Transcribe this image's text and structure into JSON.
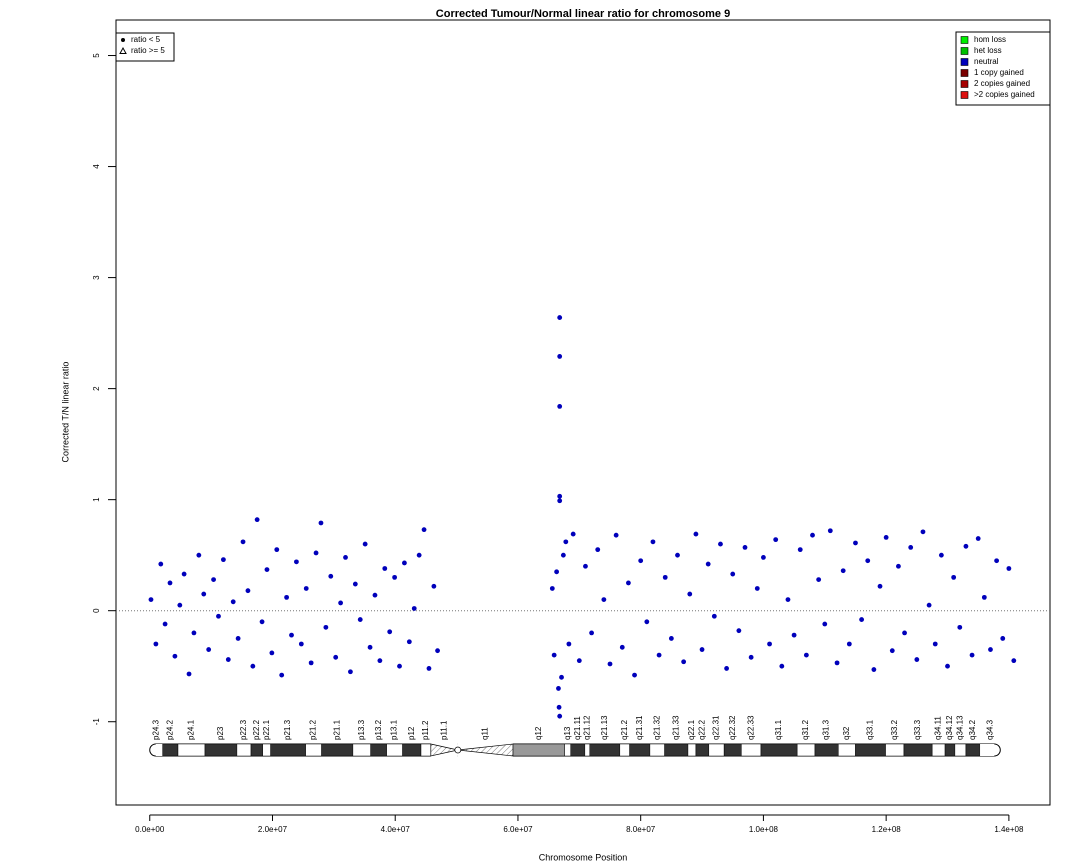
{
  "chart_data": {
    "type": "scatter",
    "title": "Corrected Tumour/Normal linear ratio for chromosome  9",
    "x_label": "Chromosome Position",
    "y_label": "Corrected T/N linear ratio",
    "xlim": [
      -5500000.0,
      146700000.0
    ],
    "ylim": [
      -1.75,
      5.32
    ],
    "xticks": [
      {
        "value": 0,
        "label": "0.0e+00"
      },
      {
        "value": 20000000.0,
        "label": "2.0e+07"
      },
      {
        "value": 40000000.0,
        "label": "4.0e+07"
      },
      {
        "value": 60000000.0,
        "label": "6.0e+07"
      },
      {
        "value": 80000000.0,
        "label": "8.0e+07"
      },
      {
        "value": 100000000.0,
        "label": "1.0e+08"
      },
      {
        "value": 120000000.0,
        "label": "1.2e+08"
      },
      {
        "value": 140000000.0,
        "label": "1.4e+08"
      }
    ],
    "yticks": [
      -1,
      0,
      1,
      2,
      3,
      4,
      5
    ],
    "hline": 0,
    "shape_legend": {
      "corner": "top-left",
      "entries": [
        "ratio < 5",
        "ratio >= 5"
      ]
    },
    "status_legend": {
      "corner": "top-right",
      "entries": [
        {
          "name": "hom loss",
          "color": "#00ee00"
        },
        {
          "name": "het loss",
          "color": "#00c000"
        },
        {
          "name": "neutral",
          "color": "#0000bb"
        },
        {
          "name": "1 copy gained",
          "color": "#7a0000"
        },
        {
          "name": "2 copies gained",
          "color": "#a50000"
        },
        {
          "name": ">2 copies gained",
          "color": "#dd1111"
        }
      ]
    },
    "series": [
      {
        "name": "neutral",
        "color": "#0000bb",
        "x": [
          200000.0,
          1000000.0,
          1800000.0,
          2500000.0,
          3300000.0,
          4100000.0,
          4900000.0,
          5600000.0,
          6400000.0,
          7200000.0,
          8000000.0,
          8800000.0,
          9600000.0,
          10400000.0,
          11200000.0,
          12000000.0,
          12800000.0,
          13600000.0,
          14400000.0,
          15200000.0,
          16000000.0,
          16800000.0,
          17500000.0,
          18300000.0,
          19100000.0,
          19900000.0,
          20700000.0,
          21500000.0,
          22300000.0,
          23100000.0,
          23900000.0,
          24700000.0,
          25500000.0,
          26300000.0,
          27100000.0,
          27900000.0,
          28700000.0,
          29500000.0,
          30300000.0,
          31100000.0,
          31900000.0,
          32700000.0,
          33500000.0,
          34300000.0,
          35100000.0,
          35900000.0,
          36700000.0,
          37500000.0,
          38300000.0,
          39100000.0,
          39900000.0,
          40700000.0,
          41500000.0,
          42300000.0,
          43100000.0,
          43900000.0,
          44700000.0,
          45500000.0,
          46300000.0,
          46900000.0,
          65600000.0,
          65900000.0,
          66300000.0,
          66600000.0,
          66800000.0,
          66800000.0,
          66800000.0,
          66800000.0,
          66800000.0,
          66800000.0,
          66700000.0,
          67100000.0,
          67400000.0,
          67800000.0,
          68300000.0,
          69000000.0,
          70000000.0,
          71000000.0,
          72000000.0,
          73000000.0,
          74000000.0,
          75000000.0,
          76000000.0,
          77000000.0,
          78000000.0,
          79000000.0,
          80000000.0,
          81000000.0,
          82000000.0,
          83000000.0,
          84000000.0,
          85000000.0,
          86000000.0,
          87000000.0,
          88000000.0,
          89000000.0,
          90000000.0,
          91000000.0,
          92000000.0,
          93000000.0,
          94000000.0,
          95000000.0,
          96000000.0,
          97000000.0,
          98000000.0,
          99000000.0,
          100000000.0,
          101000000.0,
          102000000.0,
          103000000.0,
          104000000.0,
          105000000.0,
          106000000.0,
          107000000.0,
          108000000.0,
          109000000.0,
          110000000.0,
          110900000.0,
          112000000.0,
          113000000.0,
          114000000.0,
          115000000.0,
          116000000.0,
          117000000.0,
          118000000.0,
          119000000.0,
          120000000.0,
          121000000.0,
          122000000.0,
          123000000.0,
          124000000.0,
          125000000.0,
          126000000.0,
          127000000.0,
          128000000.0,
          129000000.0,
          130000000.0,
          131000000.0,
          132000000.0,
          133000000.0,
          134000000.0,
          135000000.0,
          136000000.0,
          137000000.0,
          138000000.0,
          139000000.0,
          140000000.0,
          140800000.0
        ],
        "values": [
          0.1,
          -0.3,
          0.42,
          -0.12,
          0.25,
          -0.41,
          0.05,
          0.33,
          -0.57,
          -0.2,
          0.5,
          0.15,
          -0.35,
          0.28,
          -0.05,
          0.46,
          -0.44,
          0.08,
          -0.25,
          0.62,
          0.18,
          -0.5,
          0.82,
          -0.1,
          0.37,
          -0.38,
          0.55,
          -0.58,
          0.12,
          -0.22,
          0.44,
          -0.3,
          0.2,
          -0.47,
          0.52,
          0.79,
          -0.15,
          0.31,
          -0.42,
          0.07,
          0.48,
          -0.55,
          0.24,
          -0.08,
          0.6,
          -0.33,
          0.14,
          -0.45,
          0.38,
          -0.19,
          0.3,
          -0.5,
          0.43,
          -0.28,
          0.02,
          0.5,
          0.73,
          -0.52,
          0.22,
          -0.36,
          0.2,
          -0.4,
          0.35,
          -0.7,
          2.64,
          2.29,
          1.84,
          1.03,
          0.99,
          -0.95,
          -0.87,
          -0.6,
          0.5,
          0.62,
          -0.3,
          0.69,
          -0.45,
          0.4,
          -0.2,
          0.55,
          0.1,
          -0.48,
          0.68,
          -0.33,
          0.25,
          -0.58,
          0.45,
          -0.1,
          0.62,
          -0.4,
          0.3,
          -0.25,
          0.5,
          -0.46,
          0.15,
          0.69,
          -0.35,
          0.42,
          -0.05,
          0.6,
          -0.52,
          0.33,
          -0.18,
          0.57,
          -0.42,
          0.2,
          0.48,
          -0.3,
          0.64,
          -0.5,
          0.1,
          -0.22,
          0.55,
          -0.4,
          0.68,
          0.28,
          -0.12,
          0.72,
          -0.47,
          0.36,
          -0.3,
          0.61,
          -0.08,
          0.45,
          -0.53,
          0.22,
          0.66,
          -0.36,
          0.4,
          -0.2,
          0.57,
          -0.44,
          0.71,
          0.05,
          -0.3,
          0.5,
          -0.5,
          0.3,
          -0.15,
          0.58,
          -0.4,
          0.65,
          0.12,
          -0.35,
          0.45,
          -0.25,
          0.38,
          -0.45
        ]
      }
    ],
    "ideogram": {
      "band_names": [
        "p24.3",
        "p24.2",
        "p24.1",
        "p23",
        "p22.3",
        "p22.2",
        "p22.1",
        "p21.3",
        "p21.2",
        "p21.1",
        "p13.3",
        "p13.2",
        "p13.1",
        "p12",
        "p11.2",
        "p11.1",
        "q11",
        "q12",
        "q13",
        "q21.11",
        "q21.12",
        "q21.13",
        "q21.2",
        "q21.31",
        "q21.32",
        "q21.33",
        "q22.1",
        "q22.2",
        "q22.31",
        "q22.32",
        "q22.33",
        "q31.1",
        "q31.2",
        "q31.3",
        "q32",
        "q33.1",
        "q33.2",
        "q33.3",
        "q34.11",
        "q34.12",
        "q34.13",
        "q34.2",
        "q34.3"
      ],
      "band_stains": [
        "white",
        "black",
        "white",
        "black",
        "white",
        "black",
        "white",
        "black",
        "white",
        "black",
        "white",
        "black",
        "white",
        "black",
        "white",
        "acen",
        "acen",
        "gvar",
        "white",
        "black",
        "white",
        "black",
        "white",
        "black",
        "white",
        "black",
        "white",
        "black",
        "white",
        "black",
        "white",
        "black",
        "white",
        "black",
        "white",
        "black",
        "white",
        "black",
        "white",
        "black",
        "white",
        "black",
        "white"
      ],
      "band_edges": [
        0,
        2100000.0,
        4600000.0,
        9000000.0,
        14200000.0,
        16500000.0,
        18400000.0,
        19700000.0,
        25400000.0,
        28000000.0,
        33100000.0,
        36000000.0,
        38600000.0,
        41200000.0,
        44200000.0,
        45800000.0,
        50200000.0,
        59200000.0,
        67600000.0,
        68600000.0,
        70900000.0,
        71700000.0,
        76600000.0,
        78200000.0,
        81500000.0,
        83900000.0,
        87700000.0,
        89000000.0,
        91100000.0,
        93600000.0,
        96400000.0,
        99600000.0,
        105500000.0,
        108400000.0,
        112200000.0,
        115000000.0,
        119900000.0,
        122900000.0,
        127500000.0,
        129600000.0,
        131200000.0,
        133000000.0,
        135300000.0,
        138600000.0
      ]
    }
  }
}
